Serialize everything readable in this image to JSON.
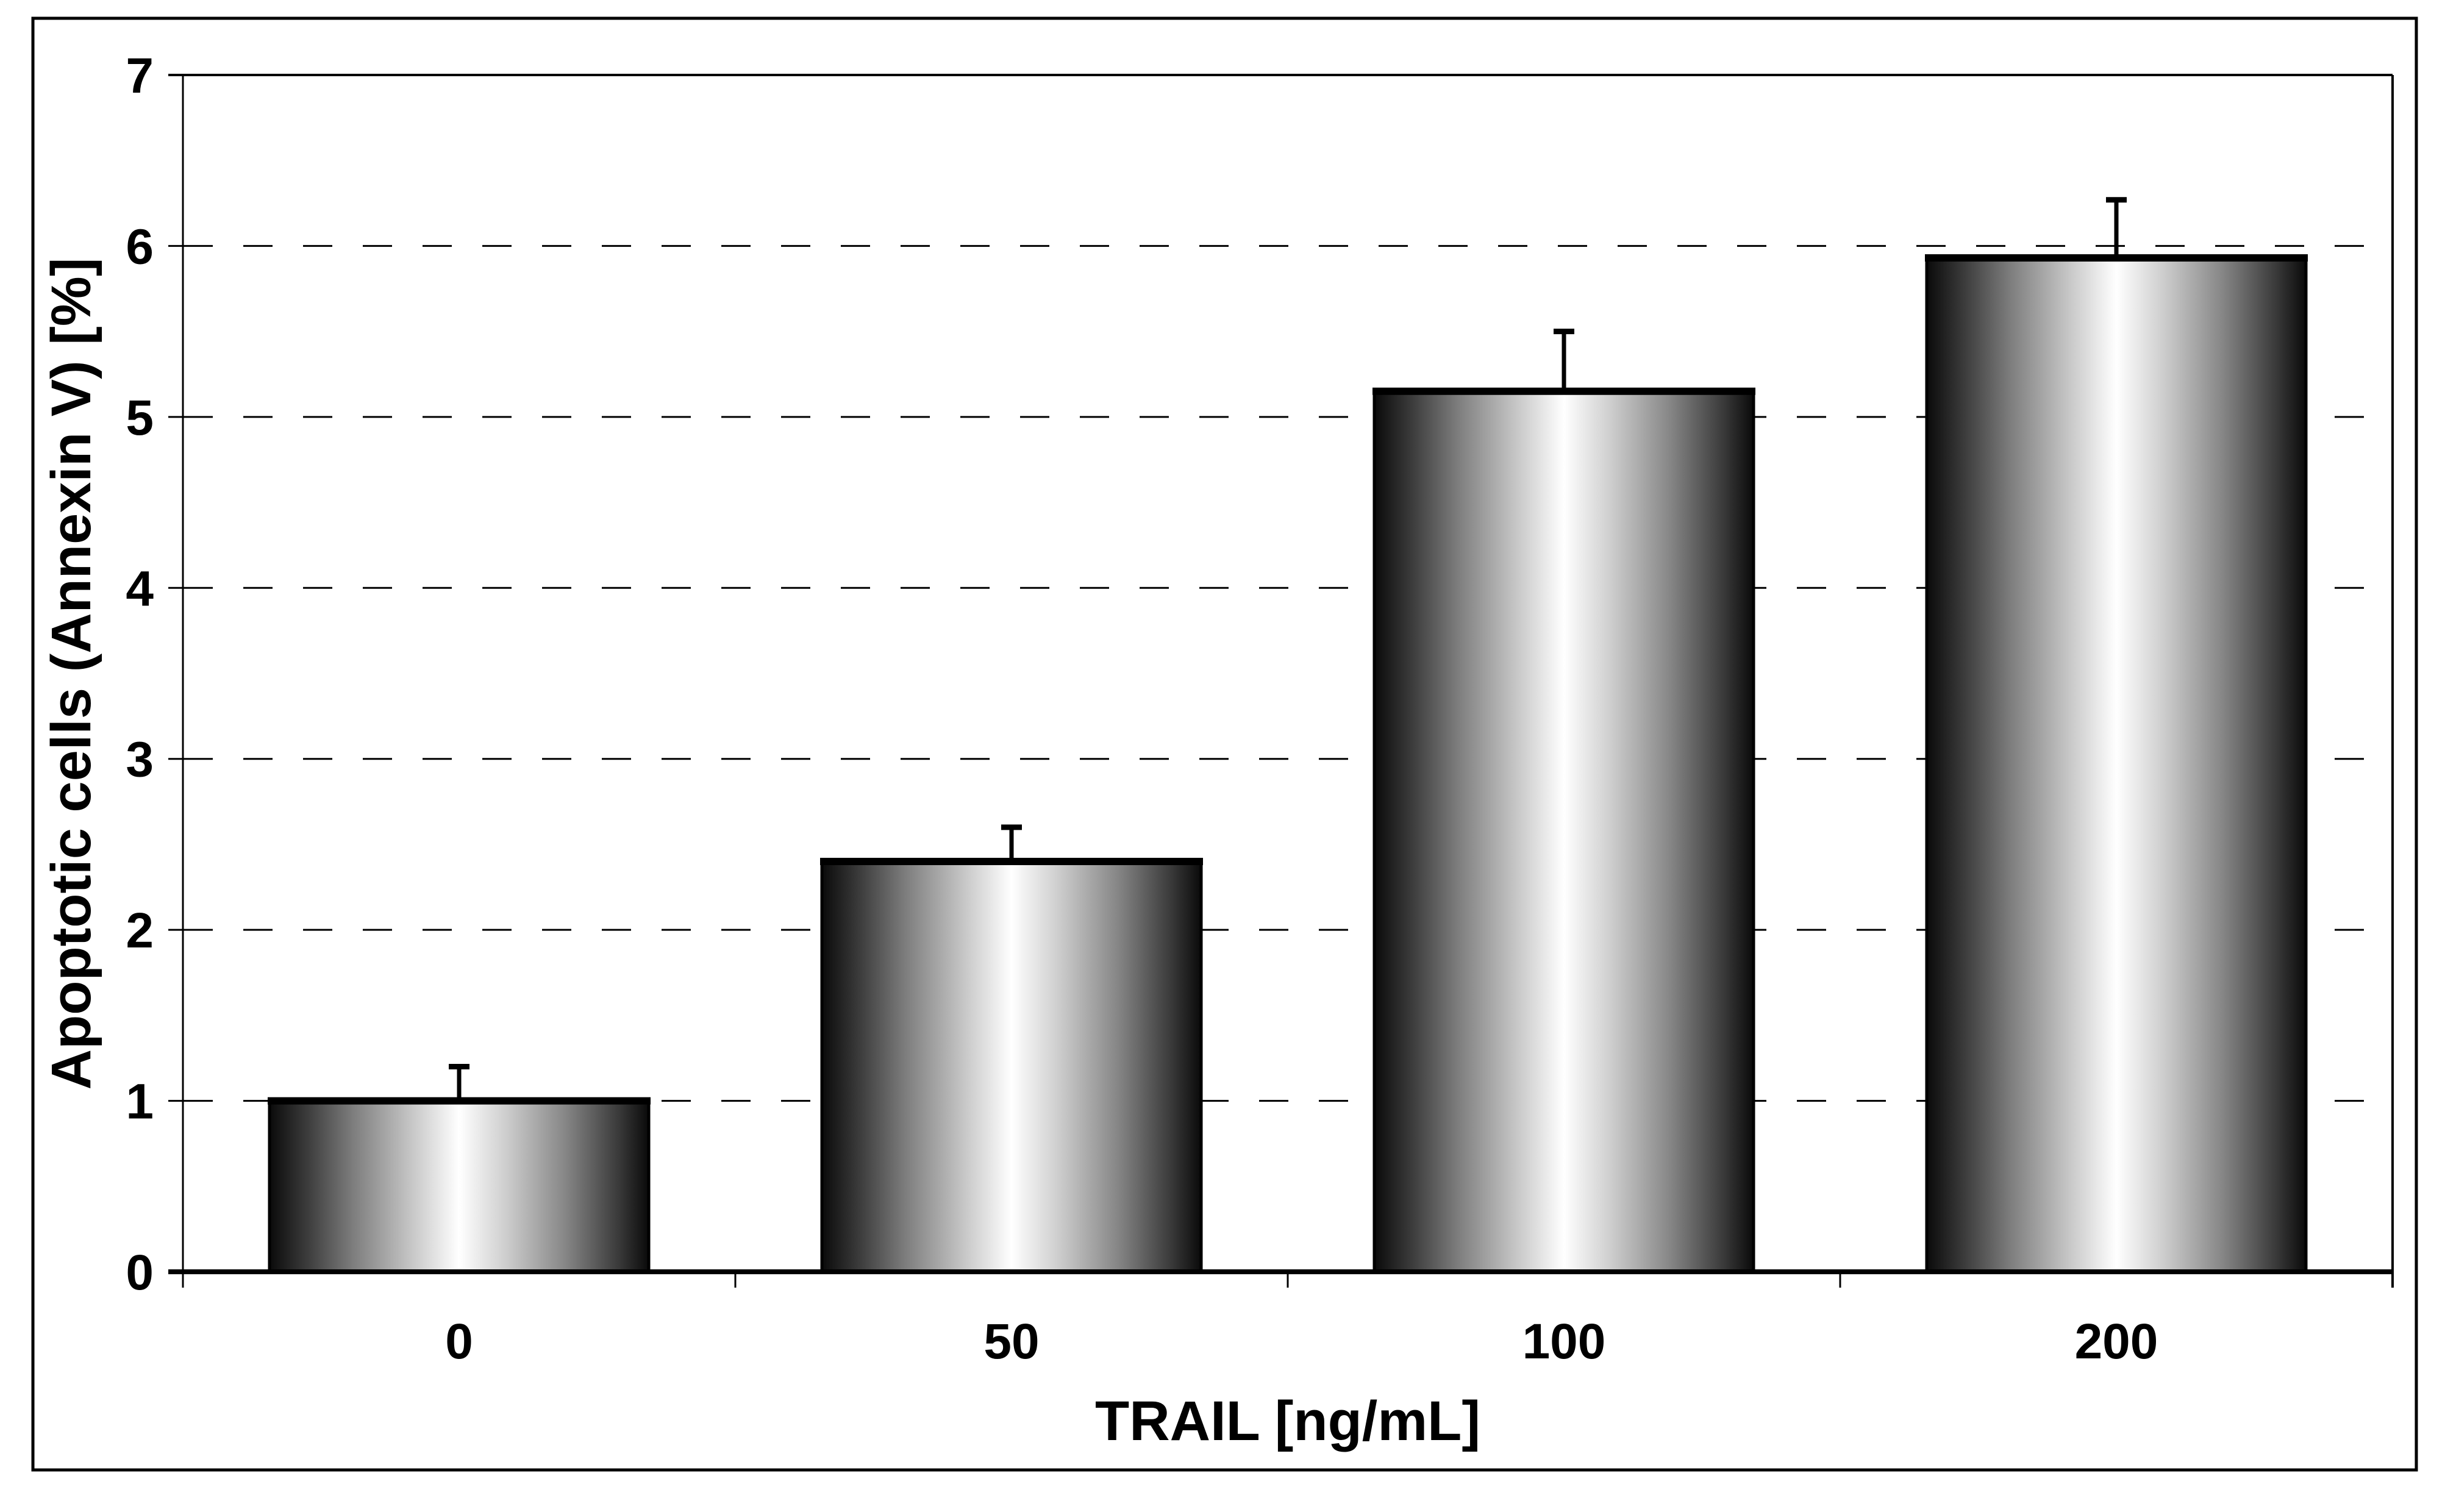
{
  "chart_data": {
    "type": "bar",
    "title": "",
    "categories": [
      "0",
      "50",
      "100",
      "200"
    ],
    "values": [
      1.0,
      2.4,
      5.15,
      5.93
    ],
    "error_bars_upper": [
      0.2,
      0.2,
      0.35,
      0.34
    ],
    "xlabel": "TRAIL [ng/mL]",
    "ylabel": "Apoptotic cells (Annexin V) [%]",
    "ylim": [
      0,
      7
    ],
    "yticks": [
      0,
      1,
      2,
      3,
      4,
      5,
      6,
      7
    ],
    "grid": "dashed horizontal gridlines at 1-6, solid border line at 7",
    "legend": "none",
    "bar_fill": "horizontal cylinder gradient black-white-black",
    "colors": {
      "foreground": "#000000",
      "background": "#ffffff",
      "bar_edge": "#000000",
      "bar_highlight": "#ffffff",
      "bar_shadow": "#0a0a0a"
    }
  }
}
